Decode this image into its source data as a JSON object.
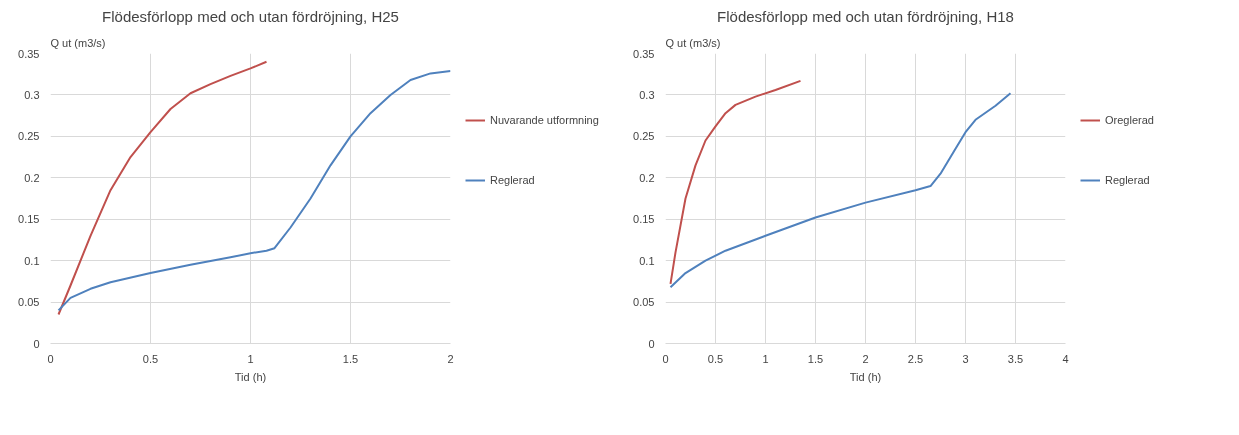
{
  "chart_data": [
    {
      "type": "line",
      "title": "Flödesförlopp med och utan fördröjning, H25",
      "ylabel": "Q ut (m3/s)",
      "xlabel": "Tid (h)",
      "xlim": [
        0,
        2
      ],
      "xticks": [
        0,
        0.5,
        1,
        1.5,
        2
      ],
      "ylim": [
        0,
        0.35
      ],
      "yticks": [
        0,
        0.05,
        0.1,
        0.15,
        0.2,
        0.25,
        0.3,
        0.35
      ],
      "grid": true,
      "legend": "right",
      "marker": "none",
      "line_style": "solid",
      "series": [
        {
          "name": "Nuvarande utformning",
          "color": "#c0504d",
          "x": [
            0.04,
            0.1,
            0.2,
            0.3,
            0.4,
            0.5,
            0.6,
            0.7,
            0.8,
            0.9,
            1.0,
            1.08
          ],
          "values": [
            0.035,
            0.07,
            0.13,
            0.185,
            0.225,
            0.255,
            0.283,
            0.302,
            0.313,
            0.323,
            0.332,
            0.34
          ]
        },
        {
          "name": "Reglerad",
          "color": "#4f81bd",
          "x": [
            0.04,
            0.1,
            0.2,
            0.3,
            0.5,
            0.7,
            0.9,
            1.0,
            1.08,
            1.12,
            1.2,
            1.3,
            1.4,
            1.5,
            1.6,
            1.7,
            1.8,
            1.9,
            2.0
          ],
          "values": [
            0.04,
            0.055,
            0.066,
            0.074,
            0.085,
            0.095,
            0.104,
            0.109,
            0.112,
            0.115,
            0.14,
            0.175,
            0.215,
            0.25,
            0.278,
            0.3,
            0.318,
            0.326,
            0.329
          ]
        }
      ]
    },
    {
      "type": "line",
      "title": "Flödesförlopp med och utan fördröjning, H18",
      "ylabel": "Q ut (m3/s)",
      "xlabel": "Tid (h)",
      "xlim": [
        0,
        4
      ],
      "xticks": [
        0,
        0.5,
        1,
        1.5,
        2,
        2.5,
        3,
        3.5,
        4
      ],
      "ylim": [
        0,
        0.35
      ],
      "yticks": [
        0,
        0.05,
        0.1,
        0.15,
        0.2,
        0.25,
        0.3,
        0.35
      ],
      "grid": true,
      "legend": "right",
      "marker": "none",
      "line_style": "solid",
      "series": [
        {
          "name": "Oreglerad",
          "color": "#c0504d",
          "x": [
            0.05,
            0.1,
            0.2,
            0.3,
            0.4,
            0.5,
            0.6,
            0.7,
            0.9,
            1.1,
            1.35
          ],
          "values": [
            0.072,
            0.11,
            0.175,
            0.215,
            0.245,
            0.262,
            0.278,
            0.288,
            0.298,
            0.306,
            0.317
          ]
        },
        {
          "name": "Reglerad",
          "color": "#4f81bd",
          "x": [
            0.05,
            0.2,
            0.4,
            0.6,
            1.0,
            1.5,
            2.0,
            2.5,
            2.65,
            2.75,
            2.9,
            3.0,
            3.1,
            3.3,
            3.45
          ],
          "values": [
            0.068,
            0.085,
            0.1,
            0.112,
            0.13,
            0.152,
            0.17,
            0.185,
            0.19,
            0.205,
            0.235,
            0.255,
            0.27,
            0.287,
            0.302
          ]
        }
      ]
    }
  ]
}
